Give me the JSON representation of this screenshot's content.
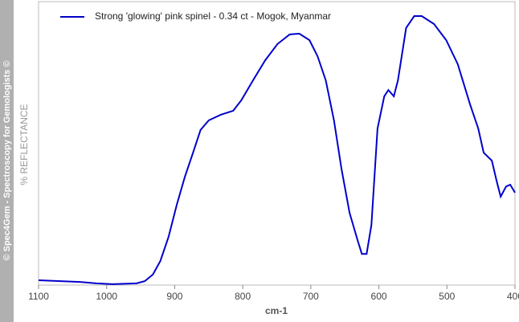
{
  "chart_data": {
    "type": "line",
    "side_note": "© Spec4Gem - Spectroscopy for Gemologists ©",
    "xlabel": "cm-1",
    "ylabel": "% REFLECTANCE",
    "x": [
      1100,
      1039,
      1015,
      991,
      956,
      944,
      932,
      921,
      909,
      897,
      885,
      873,
      862,
      850,
      832,
      814,
      802,
      785,
      767,
      749,
      731,
      717,
      702,
      690,
      678,
      666,
      655,
      643,
      631,
      625,
      618,
      611,
      602,
      592,
      586,
      578,
      572,
      560,
      548,
      537,
      519,
      501,
      484,
      466,
      454,
      446,
      434,
      427,
      421,
      413,
      407,
      400
    ],
    "series": [
      {
        "name": "Strong 'glowing' pink spinel - 0.34 ct - Mogok, Myanmar",
        "color": "#0000cc",
        "values": [
          1.7,
          1.1,
          0.6,
          0.3,
          0.6,
          1.4,
          3.7,
          8.5,
          17,
          28.3,
          38.2,
          46.7,
          54.7,
          58.1,
          60.1,
          61.5,
          65.2,
          72.2,
          79.3,
          85,
          88.4,
          88.7,
          86.4,
          80.7,
          72.2,
          58.1,
          41.1,
          25.5,
          15.6,
          11,
          11,
          21.2,
          55.2,
          66.6,
          68.8,
          66.6,
          72.2,
          90.7,
          94.9,
          94.9,
          92.1,
          86.4,
          77.9,
          63.7,
          55.2,
          46.7,
          43.9,
          36.8,
          31.2,
          34.8,
          35.4,
          32.6
        ]
      }
    ],
    "xlim": [
      1100,
      400
    ],
    "ylim": [
      0,
      100
    ],
    "xticks": [
      1100,
      1000,
      900,
      800,
      700,
      600,
      500,
      400
    ],
    "legend": "top-left"
  }
}
